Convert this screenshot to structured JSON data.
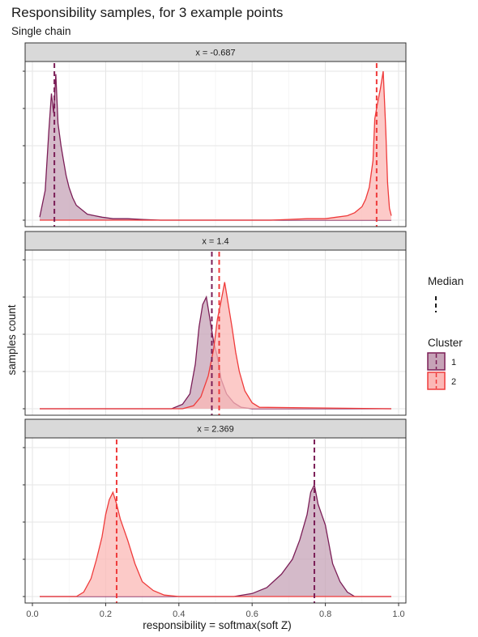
{
  "title": "Responsibility samples, for 3 example points",
  "subtitle": "Single chain",
  "chart_data": {
    "type": "area",
    "xlabel": "responsibility = softmax(soft Z)",
    "ylabel": "samples count",
    "xlim": [
      0,
      1
    ],
    "x_ticks": [
      0.0,
      0.2,
      0.4,
      0.6,
      0.8,
      1.0
    ],
    "x_tick_labels": [
      "0.0",
      "0.2",
      "0.4",
      "0.6",
      "0.8",
      "1.0"
    ],
    "grid": true,
    "y_tick_labels_shown": false,
    "legend": {
      "placement": "right",
      "median_title": "Median",
      "cluster_title": "Cluster",
      "entries": [
        {
          "label": "1",
          "color": "#7b1e57",
          "fill": "#c6a3b7"
        },
        {
          "label": "2",
          "color": "#ef3b3b",
          "fill": "#fbb8b6"
        }
      ]
    },
    "panels": [
      {
        "label": "x = -0.687",
        "ylim": [
          0,
          100
        ],
        "series": [
          {
            "cluster": "1",
            "median": 0.06,
            "points": [
              [
                0.02,
                2
              ],
              [
                0.035,
                20
              ],
              [
                0.045,
                60
              ],
              [
                0.052,
                85
              ],
              [
                0.058,
                72
              ],
              [
                0.064,
                98
              ],
              [
                0.07,
                65
              ],
              [
                0.078,
                50
              ],
              [
                0.085,
                40
              ],
              [
                0.092,
                30
              ],
              [
                0.1,
                22
              ],
              [
                0.11,
                15
              ],
              [
                0.12,
                10
              ],
              [
                0.135,
                7
              ],
              [
                0.15,
                4
              ],
              [
                0.17,
                3
              ],
              [
                0.19,
                2
              ],
              [
                0.22,
                1
              ],
              [
                0.26,
                1
              ],
              [
                0.3,
                0.5
              ],
              [
                0.35,
                0
              ],
              [
                0.98,
                0
              ]
            ]
          },
          {
            "cluster": "2",
            "median": 0.94,
            "points": [
              [
                0.02,
                0
              ],
              [
                0.65,
                0
              ],
              [
                0.7,
                0.5
              ],
              [
                0.75,
                1
              ],
              [
                0.8,
                1
              ],
              [
                0.83,
                2
              ],
              [
                0.86,
                3
              ],
              [
                0.88,
                5
              ],
              [
                0.9,
                9
              ],
              [
                0.91,
                14
              ],
              [
                0.92,
                22
              ],
              [
                0.93,
                40
              ],
              [
                0.935,
                68
              ],
              [
                0.942,
                78
              ],
              [
                0.95,
                88
              ],
              [
                0.958,
                100
              ],
              [
                0.965,
                60
              ],
              [
                0.97,
                25
              ],
              [
                0.975,
                8
              ],
              [
                0.98,
                3
              ]
            ]
          }
        ]
      },
      {
        "label": "x = 1.4",
        "ylim": [
          0,
          100
        ],
        "series": [
          {
            "cluster": "1",
            "median": 0.49,
            "points": [
              [
                0.02,
                0
              ],
              [
                0.38,
                0
              ],
              [
                0.41,
                3
              ],
              [
                0.43,
                10
              ],
              [
                0.445,
                30
              ],
              [
                0.455,
                55
              ],
              [
                0.465,
                70
              ],
              [
                0.475,
                75
              ],
              [
                0.485,
                60
              ],
              [
                0.495,
                45
              ],
              [
                0.505,
                35
              ],
              [
                0.515,
                20
              ],
              [
                0.53,
                10
              ],
              [
                0.55,
                4
              ],
              [
                0.57,
                1
              ],
              [
                0.6,
                0
              ],
              [
                0.98,
                0
              ]
            ]
          },
          {
            "cluster": "2",
            "median": 0.51,
            "points": [
              [
                0.02,
                0
              ],
              [
                0.41,
                0
              ],
              [
                0.44,
                2
              ],
              [
                0.46,
                8
              ],
              [
                0.48,
                22
              ],
              [
                0.495,
                40
              ],
              [
                0.505,
                60
              ],
              [
                0.515,
                72
              ],
              [
                0.525,
                85
              ],
              [
                0.535,
                70
              ],
              [
                0.545,
                55
              ],
              [
                0.555,
                38
              ],
              [
                0.565,
                25
              ],
              [
                0.58,
                12
              ],
              [
                0.6,
                4
              ],
              [
                0.62,
                1
              ],
              [
                0.98,
                0
              ]
            ]
          }
        ]
      },
      {
        "label": "x = 2.369",
        "ylim": [
          0,
          100
        ],
        "series": [
          {
            "cluster": "1",
            "median": 0.77,
            "points": [
              [
                0.02,
                0
              ],
              [
                0.55,
                0
              ],
              [
                0.6,
                2
              ],
              [
                0.64,
                6
              ],
              [
                0.68,
                15
              ],
              [
                0.71,
                25
              ],
              [
                0.73,
                38
              ],
              [
                0.75,
                55
              ],
              [
                0.76,
                70
              ],
              [
                0.77,
                75
              ],
              [
                0.78,
                62
              ],
              [
                0.79,
                55
              ],
              [
                0.8,
                48
              ],
              [
                0.81,
                35
              ],
              [
                0.82,
                22
              ],
              [
                0.84,
                10
              ],
              [
                0.86,
                3
              ],
              [
                0.88,
                0
              ],
              [
                0.98,
                0
              ]
            ]
          },
          {
            "cluster": "2",
            "median": 0.23,
            "points": [
              [
                0.02,
                0
              ],
              [
                0.12,
                0
              ],
              [
                0.14,
                3
              ],
              [
                0.16,
                12
              ],
              [
                0.175,
                25
              ],
              [
                0.19,
                40
              ],
              [
                0.2,
                55
              ],
              [
                0.21,
                65
              ],
              [
                0.22,
                70
              ],
              [
                0.23,
                62
              ],
              [
                0.24,
                52
              ],
              [
                0.25,
                45
              ],
              [
                0.26,
                38
              ],
              [
                0.28,
                22
              ],
              [
                0.3,
                10
              ],
              [
                0.33,
                4
              ],
              [
                0.36,
                1
              ],
              [
                0.4,
                0
              ],
              [
                0.98,
                0
              ]
            ]
          }
        ]
      }
    ]
  }
}
